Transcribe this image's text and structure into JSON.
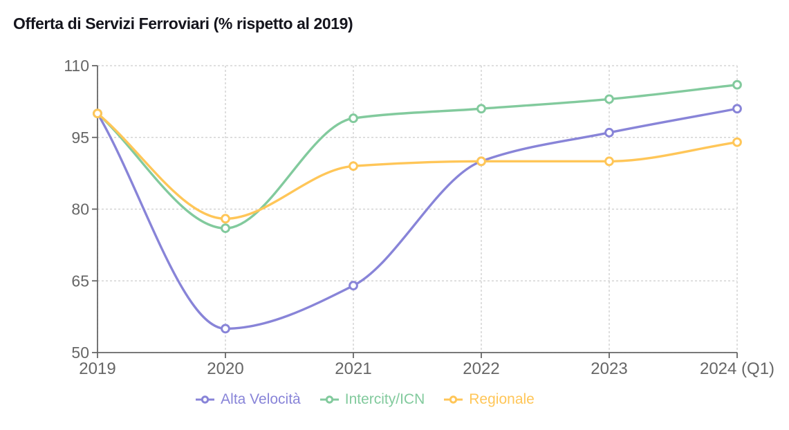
{
  "title": "Offerta di Servizi Ferroviari (% rispetto al 2019)",
  "chart_data": {
    "type": "line",
    "title": "Offerta di Servizi Ferroviari (% rispetto al 2019)",
    "categories": [
      "2019",
      "2020",
      "2021",
      "2022",
      "2023",
      "2024 (Q1)"
    ],
    "series": [
      {
        "name": "Alta Velocità",
        "color": "#8884d8",
        "values": [
          100,
          55,
          64,
          90,
          96,
          101
        ]
      },
      {
        "name": "Intercity/ICN",
        "color": "#82ca9d",
        "values": [
          100,
          76,
          99,
          101,
          103,
          106
        ]
      },
      {
        "name": "Regionale",
        "color": "#ffc658",
        "values": [
          100,
          78,
          89,
          90,
          90,
          94
        ]
      }
    ],
    "xlabel": "",
    "ylabel": "",
    "ylim": [
      50,
      110
    ],
    "yticks": [
      50,
      65,
      80,
      95,
      110
    ],
    "grid": true,
    "grid_dash": "3 3",
    "grid_color": "#cccccc",
    "axis_color": "#666666",
    "tick_label_color": "#666666",
    "title_color": "#15151d",
    "background": "#ffffff",
    "curve": "monotone",
    "marker": "hollow-circle",
    "legend_position": "bottom"
  }
}
